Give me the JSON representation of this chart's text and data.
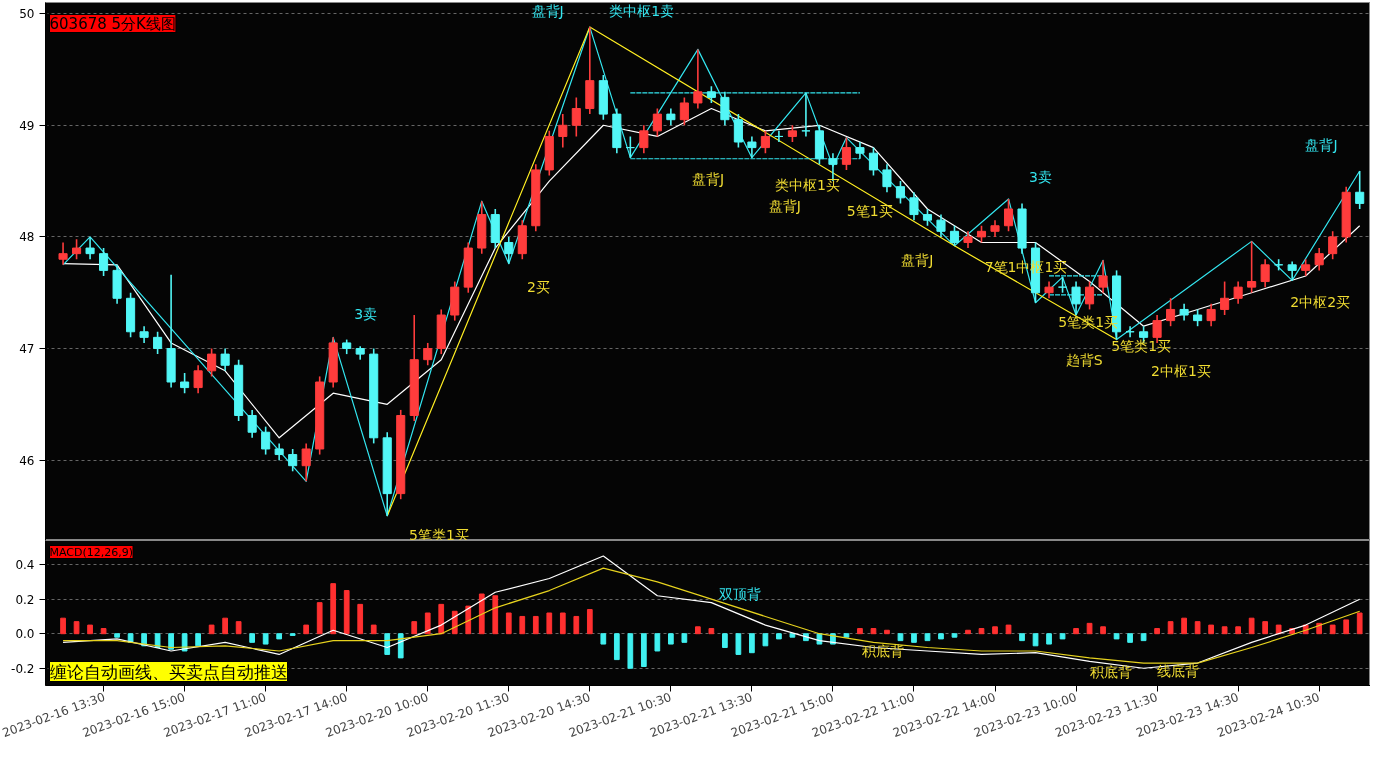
{
  "chart_data": [
    {
      "type": "candlestick",
      "title": "603678 5分K线图",
      "tick_labels": "y",
      "grid": "y",
      "ylim": [
        45.28,
        50.1
      ],
      "yticks": [
        46,
        47,
        48,
        49,
        50
      ],
      "categories": [
        null,
        null,
        null,
        "2023-02-16 13:30",
        null,
        null,
        null,
        null,
        null,
        "2023-02-16 15:00",
        null,
        null,
        null,
        null,
        null,
        "2023-02-17 11:00",
        null,
        null,
        null,
        null,
        null,
        "2023-02-17 14:00",
        null,
        null,
        null,
        null,
        null,
        "2023-02-20 10:00",
        null,
        null,
        null,
        null,
        null,
        "2023-02-20 11:30",
        null,
        null,
        null,
        null,
        null,
        "2023-02-20 14:30",
        null,
        null,
        null,
        null,
        null,
        "2023-02-21 10:30",
        null,
        null,
        null,
        null,
        null,
        "2023-02-21 13:30",
        null,
        null,
        null,
        null,
        null,
        "2023-02-21 15:00",
        null,
        null,
        null,
        null,
        null,
        "2023-02-22 11:00",
        null,
        null,
        null,
        null,
        null,
        "2023-02-22 14:00",
        null,
        null,
        null,
        null,
        null,
        "2023-02-23 10:00",
        null,
        null,
        null,
        null,
        null,
        "2023-02-23 11:30",
        null,
        null,
        null,
        null,
        null,
        "2023-02-23 14:30",
        null,
        null,
        null,
        null,
        null,
        "2023-02-24 10:30",
        null,
        null,
        null
      ],
      "annotations": [
        "3卖",
        "盘背J",
        "类中枢1卖",
        "3卖",
        "盘背J",
        "5笔类1买",
        "2买",
        "盘背J",
        "盘背J",
        "类中枢1买",
        "5笔1买",
        "盘背J",
        "7笔1中枢1买",
        "趋背S",
        "5笔类1买",
        "5笔类1买",
        "2中枢1买",
        "2中枢2买"
      ],
      "ohlc": [
        [
          47.8,
          47.95,
          47.75,
          47.85
        ],
        [
          47.85,
          47.98,
          47.8,
          47.9
        ],
        [
          47.9,
          48.0,
          47.8,
          47.85
        ],
        [
          47.85,
          47.9,
          47.65,
          47.7
        ],
        [
          47.7,
          47.75,
          47.4,
          47.45
        ],
        [
          47.45,
          47.5,
          47.1,
          47.15
        ],
        [
          47.15,
          47.2,
          47.05,
          47.1
        ],
        [
          47.1,
          47.15,
          46.95,
          47.0
        ],
        [
          47.0,
          47.66,
          46.65,
          46.7
        ],
        [
          46.7,
          46.78,
          46.6,
          46.65
        ],
        [
          46.65,
          46.85,
          46.6,
          46.8
        ],
        [
          46.8,
          47.0,
          46.75,
          46.95
        ],
        [
          46.95,
          47.0,
          46.8,
          46.85
        ],
        [
          46.85,
          46.9,
          46.35,
          46.4
        ],
        [
          46.4,
          46.45,
          46.2,
          46.25
        ],
        [
          46.25,
          46.3,
          46.05,
          46.1
        ],
        [
          46.1,
          46.15,
          46.0,
          46.05
        ],
        [
          46.05,
          46.1,
          45.9,
          45.95
        ],
        [
          45.95,
          46.15,
          45.81,
          46.1
        ],
        [
          46.1,
          46.75,
          46.05,
          46.7
        ],
        [
          46.7,
          47.1,
          46.65,
          47.05
        ],
        [
          47.05,
          47.08,
          46.95,
          47.0
        ],
        [
          47.0,
          47.02,
          46.9,
          46.95
        ],
        [
          46.95,
          47.0,
          46.15,
          46.2
        ],
        [
          46.2,
          46.25,
          45.5,
          45.7
        ],
        [
          45.7,
          46.45,
          45.65,
          46.4
        ],
        [
          46.4,
          47.3,
          46.35,
          46.9
        ],
        [
          46.9,
          47.05,
          46.85,
          47.0
        ],
        [
          47.0,
          47.35,
          46.95,
          47.3
        ],
        [
          47.3,
          47.6,
          47.25,
          47.55
        ],
        [
          47.55,
          47.95,
          47.5,
          47.9
        ],
        [
          47.9,
          48.32,
          47.85,
          48.2
        ],
        [
          48.2,
          48.25,
          47.9,
          47.95
        ],
        [
          47.95,
          48.0,
          47.76,
          47.85
        ],
        [
          47.85,
          48.15,
          47.8,
          48.1
        ],
        [
          48.1,
          48.65,
          48.05,
          48.6
        ],
        [
          48.6,
          48.95,
          48.55,
          48.9
        ],
        [
          48.9,
          49.1,
          48.8,
          49.0
        ],
        [
          49.0,
          49.25,
          48.9,
          49.15
        ],
        [
          49.15,
          49.88,
          49.1,
          49.4
        ],
        [
          49.4,
          49.45,
          49.05,
          49.1
        ],
        [
          49.1,
          49.15,
          48.75,
          48.8
        ],
        [
          48.8,
          48.9,
          48.71,
          48.8
        ],
        [
          48.8,
          49.0,
          48.75,
          48.95
        ],
        [
          48.95,
          49.15,
          48.9,
          49.1
        ],
        [
          49.1,
          49.15,
          49.0,
          49.05
        ],
        [
          49.05,
          49.25,
          49.0,
          49.2
        ],
        [
          49.2,
          49.68,
          49.15,
          49.3
        ],
        [
          49.3,
          49.35,
          49.2,
          49.25
        ],
        [
          49.25,
          49.3,
          49.0,
          49.05
        ],
        [
          49.05,
          49.1,
          48.8,
          48.85
        ],
        [
          48.85,
          48.9,
          48.71,
          48.8
        ],
        [
          48.8,
          48.95,
          48.75,
          48.9
        ],
        [
          48.9,
          48.95,
          48.85,
          48.9
        ],
        [
          48.9,
          49.0,
          48.85,
          48.95
        ],
        [
          48.95,
          49.29,
          48.9,
          48.95
        ],
        [
          48.95,
          49.0,
          48.65,
          48.7
        ],
        [
          48.7,
          48.75,
          48.5,
          48.65
        ],
        [
          48.65,
          48.89,
          48.6,
          48.8
        ],
        [
          48.8,
          48.85,
          48.7,
          48.75
        ],
        [
          48.75,
          48.8,
          48.55,
          48.6
        ],
        [
          48.6,
          48.65,
          48.4,
          48.45
        ],
        [
          48.45,
          48.5,
          48.3,
          48.35
        ],
        [
          48.35,
          48.4,
          48.15,
          48.2
        ],
        [
          48.2,
          48.25,
          48.1,
          48.15
        ],
        [
          48.15,
          48.2,
          48.0,
          48.05
        ],
        [
          48.05,
          48.1,
          47.92,
          47.95
        ],
        [
          47.95,
          48.05,
          47.9,
          48.0
        ],
        [
          48.0,
          48.1,
          47.95,
          48.05
        ],
        [
          48.05,
          48.15,
          48.0,
          48.1
        ],
        [
          48.1,
          48.34,
          48.05,
          48.25
        ],
        [
          48.25,
          48.3,
          47.85,
          47.9
        ],
        [
          47.9,
          47.95,
          47.41,
          47.5
        ],
        [
          47.5,
          47.6,
          47.45,
          47.55
        ],
        [
          47.55,
          47.64,
          47.5,
          47.55
        ],
        [
          47.55,
          47.6,
          47.3,
          47.4
        ],
        [
          47.4,
          47.6,
          47.35,
          47.55
        ],
        [
          47.55,
          47.79,
          47.5,
          47.65
        ],
        [
          47.65,
          47.7,
          47.08,
          47.15
        ],
        [
          47.15,
          47.2,
          47.1,
          47.15
        ],
        [
          47.15,
          47.2,
          47.05,
          47.1
        ],
        [
          47.1,
          47.3,
          47.05,
          47.25
        ],
        [
          47.25,
          47.45,
          47.2,
          47.35
        ],
        [
          47.35,
          47.4,
          47.25,
          47.3
        ],
        [
          47.3,
          47.35,
          47.2,
          47.25
        ],
        [
          47.25,
          47.4,
          47.2,
          47.35
        ],
        [
          47.35,
          47.6,
          47.3,
          47.45
        ],
        [
          47.45,
          47.6,
          47.4,
          47.55
        ],
        [
          47.55,
          47.96,
          47.5,
          47.6
        ],
        [
          47.6,
          47.8,
          47.55,
          47.75
        ],
        [
          47.75,
          47.8,
          47.7,
          47.75
        ],
        [
          47.75,
          47.78,
          47.61,
          47.7
        ],
        [
          47.7,
          47.8,
          47.65,
          47.75
        ],
        [
          47.75,
          47.9,
          47.7,
          47.85
        ],
        [
          47.85,
          48.05,
          47.8,
          48.0
        ],
        [
          48.0,
          48.45,
          47.95,
          48.4
        ],
        [
          48.4,
          48.59,
          48.25,
          48.3
        ]
      ],
      "colors": [
        "#ff3c3c",
        "#ff3c3c",
        "#52f6f6",
        "#52f6f6",
        "#52f6f6",
        "#52f6f6",
        "#52f6f6",
        "#52f6f6",
        "#52f6f6",
        "#52f6f6",
        "#ff3c3c",
        "#ff3c3c",
        "#52f6f6",
        "#52f6f6",
        "#52f6f6",
        "#52f6f6",
        "#52f6f6",
        "#52f6f6",
        "#ff3c3c",
        "#ff3c3c",
        "#ff3c3c",
        "#52f6f6",
        "#52f6f6",
        "#52f6f6",
        "#52f6f6",
        "#ff3c3c",
        "#ff3c3c",
        "#ff3c3c",
        "#ff3c3c",
        "#ff3c3c",
        "#ff3c3c",
        "#ff3c3c",
        "#52f6f6",
        "#52f6f6",
        "#ff3c3c",
        "#ff3c3c",
        "#ff3c3c",
        "#ff3c3c",
        "#ff3c3c",
        "#ff3c3c",
        "#52f6f6",
        "#52f6f6",
        "#52f6f6",
        "#ff3c3c",
        "#ff3c3c",
        "#52f6f6",
        "#ff3c3c",
        "#ff3c3c",
        "#52f6f6",
        "#52f6f6",
        "#52f6f6",
        "#52f6f6",
        "#ff3c3c",
        "#52f6f6",
        "#ff3c3c",
        "#52f6f6",
        "#52f6f6",
        "#52f6f6",
        "#ff3c3c",
        "#52f6f6",
        "#52f6f6",
        "#52f6f6",
        "#52f6f6",
        "#52f6f6",
        "#52f6f6",
        "#52f6f6",
        "#52f6f6",
        "#ff3c3c",
        "#ff3c3c",
        "#ff3c3c",
        "#ff3c3c",
        "#52f6f6",
        "#52f6f6",
        "#ff3c3c",
        "#52f6f6",
        "#52f6f6",
        "#ff3c3c",
        "#ff3c3c",
        "#52f6f6",
        "#52f6f6",
        "#52f6f6",
        "#ff3c3c",
        "#ff3c3c",
        "#52f6f6",
        "#52f6f6",
        "#ff3c3c",
        "#ff3c3c",
        "#ff3c3c",
        "#ff3c3c",
        "#ff3c3c",
        "#52f6f6",
        "#52f6f6",
        "#ff3c3c",
        "#ff3c3c",
        "#ff3c3c",
        "#ff3c3c",
        "#52f6f6"
      ],
      "series": [
        {
          "type": "line",
          "color": "#ffffff",
          "values": [
            47.76,
            null,
            null,
            null,
            47.75,
            null,
            null,
            null,
            47.05,
            null,
            null,
            null,
            46.8,
            null,
            null,
            null,
            46.2,
            null,
            null,
            null,
            46.6,
            null,
            null,
            null,
            46.5,
            null,
            null,
            null,
            46.9,
            null,
            null,
            null,
            47.9,
            null,
            null,
            null,
            48.5,
            null,
            null,
            null,
            49.0,
            null,
            null,
            null,
            48.9,
            null,
            null,
            null,
            49.15,
            null,
            null,
            null,
            48.95,
            null,
            null,
            null,
            49.0,
            null,
            null,
            null,
            48.8,
            null,
            null,
            null,
            48.25,
            null,
            null,
            null,
            47.95,
            null,
            null,
            null,
            47.95,
            null,
            null,
            null,
            47.6,
            null,
            null,
            null,
            47.2,
            null,
            null,
            null,
            47.35,
            null,
            null,
            null,
            47.5,
            null,
            null,
            null,
            47.65,
            null,
            null,
            null,
            48.1
          ]
        },
        {
          "type": "line",
          "color": "#33e6f0",
          "values": [
            47.75,
            null,
            48.0,
            null,
            null,
            null,
            null,
            null,
            null,
            null,
            null,
            null,
            null,
            null,
            null,
            null,
            null,
            null,
            45.81,
            null,
            47.1,
            null,
            null,
            null,
            45.5,
            null,
            null,
            null,
            null,
            null,
            null,
            48.32,
            null,
            47.76,
            null,
            null,
            null,
            null,
            null,
            49.88,
            null,
            null,
            48.71,
            null,
            null,
            null,
            null,
            49.68,
            null,
            null,
            null,
            48.71,
            null,
            null,
            null,
            49.29,
            null,
            48.63,
            48.89,
            null,
            null,
            null,
            null,
            null,
            null,
            null,
            47.92,
            null,
            null,
            null,
            48.34,
            null,
            47.41,
            null,
            47.64,
            47.3,
            null,
            47.79,
            47.08,
            null,
            null,
            null,
            null,
            null,
            null,
            null,
            null,
            null,
            47.96,
            null,
            null,
            47.61,
            null,
            null,
            null,
            null,
            48.59
          ]
        },
        {
          "type": "line",
          "color": "#ffee22",
          "values": [
            null,
            null,
            null,
            null,
            null,
            null,
            null,
            null,
            null,
            null,
            null,
            null,
            null,
            null,
            null,
            null,
            null,
            null,
            null,
            null,
            null,
            null,
            null,
            null,
            45.5,
            null,
            null,
            null,
            null,
            null,
            null,
            null,
            null,
            null,
            null,
            null,
            null,
            null,
            null,
            49.88,
            null,
            null,
            null,
            null,
            null,
            null,
            null,
            null,
            null,
            null,
            null,
            null,
            null,
            null,
            null,
            null,
            null,
            null,
            null,
            null,
            null,
            null,
            null,
            null,
            null,
            null,
            47.92,
            null,
            null,
            null,
            null,
            null,
            null,
            null,
            null,
            null,
            null,
            null,
            47.08,
            null,
            null,
            null,
            null,
            null,
            null,
            null,
            null,
            null,
            null,
            null,
            null,
            null,
            null,
            null,
            null,
            null,
            null
          ]
        },
        {
          "type": "line",
          "color": "#33e6f0",
          "line_style": "dashed",
          "values": [
            null,
            null,
            null,
            null,
            null,
            null,
            null,
            null,
            null,
            null,
            null,
            null,
            null,
            null,
            null,
            null,
            null,
            null,
            null,
            null,
            null,
            null,
            null,
            null,
            null,
            null,
            null,
            null,
            null,
            null,
            null,
            null,
            null,
            null,
            null,
            null,
            null,
            null,
            null,
            null,
            null,
            null,
            49.29,
            49.29,
            49.29,
            49.29,
            49.29,
            49.29,
            49.29,
            49.29,
            49.29,
            49.29,
            49.29,
            49.29,
            49.29,
            49.29,
            49.29,
            49.29,
            49.29,
            49.29,
            null,
            null,
            null,
            null,
            null,
            null,
            null,
            null,
            null,
            null,
            null,
            null,
            null,
            null,
            null,
            null,
            null,
            null,
            null,
            null,
            null,
            null,
            null,
            null,
            null,
            null,
            null,
            null,
            null,
            null,
            null,
            null,
            null,
            null,
            null,
            null,
            null
          ]
        },
        {
          "type": "line",
          "color": "#33e6f0",
          "line_style": "dashed",
          "values": [
            null,
            null,
            null,
            null,
            null,
            null,
            null,
            null,
            null,
            null,
            null,
            null,
            null,
            null,
            null,
            null,
            null,
            null,
            null,
            null,
            null,
            null,
            null,
            null,
            null,
            null,
            null,
            null,
            null,
            null,
            null,
            null,
            null,
            null,
            null,
            null,
            null,
            null,
            null,
            null,
            null,
            null,
            48.7,
            48.7,
            48.7,
            48.7,
            48.7,
            48.7,
            48.7,
            48.7,
            48.7,
            48.7,
            48.7,
            48.7,
            48.7,
            48.7,
            48.7,
            48.7,
            48.7,
            48.7,
            null,
            null,
            null,
            null,
            null,
            null,
            null,
            null,
            null,
            null,
            null,
            null,
            null,
            null,
            null,
            null,
            null,
            null,
            null,
            null,
            null,
            null,
            null,
            null,
            null,
            null,
            null,
            null,
            null,
            null,
            null,
            null,
            null,
            null,
            null,
            null,
            null
          ]
        },
        {
          "type": "line",
          "color": "#33e6f0",
          "line_style": "dashed",
          "values": [
            null,
            null,
            null,
            null,
            null,
            null,
            null,
            null,
            null,
            null,
            null,
            null,
            null,
            null,
            null,
            null,
            null,
            null,
            null,
            null,
            null,
            null,
            null,
            null,
            null,
            null,
            null,
            null,
            null,
            null,
            null,
            null,
            null,
            null,
            null,
            null,
            null,
            null,
            null,
            null,
            null,
            null,
            null,
            null,
            null,
            null,
            null,
            null,
            null,
            null,
            null,
            null,
            null,
            null,
            null,
            null,
            null,
            null,
            null,
            null,
            null,
            null,
            null,
            null,
            null,
            null,
            null,
            null,
            null,
            null,
            null,
            null,
            null,
            47.65,
            47.65,
            47.65,
            47.65,
            47.65,
            null,
            null,
            null,
            null,
            null,
            null,
            null,
            null,
            null,
            null,
            null,
            null,
            null,
            null,
            null,
            null,
            null,
            null,
            null
          ]
        },
        {
          "type": "line",
          "color": "#33e6f0",
          "line_style": "dashed",
          "values": [
            null,
            null,
            null,
            null,
            null,
            null,
            null,
            null,
            null,
            null,
            null,
            null,
            null,
            null,
            null,
            null,
            null,
            null,
            null,
            null,
            null,
            null,
            null,
            null,
            null,
            null,
            null,
            null,
            null,
            null,
            null,
            null,
            null,
            null,
            null,
            null,
            null,
            null,
            null,
            null,
            null,
            null,
            null,
            null,
            null,
            null,
            null,
            null,
            null,
            null,
            null,
            null,
            null,
            null,
            null,
            null,
            null,
            null,
            null,
            null,
            null,
            null,
            null,
            null,
            null,
            null,
            null,
            null,
            null,
            null,
            null,
            null,
            null,
            47.48,
            47.48,
            47.48,
            47.48,
            47.48,
            null,
            null,
            null,
            null,
            null,
            null,
            null,
            null,
            null,
            null,
            null,
            null,
            null,
            null,
            null,
            null,
            null,
            null,
            null
          ]
        }
      ]
    },
    {
      "type": "bar",
      "title": "MACD(12,26,9)",
      "grid": "y",
      "ylim": [
        -0.3,
        0.54
      ],
      "yticks": [
        -0.2,
        {
          "value": 0,
          "label": "0.0"
        },
        0.2,
        0.4
      ],
      "annotations": [
        "缠论自动画线、买卖点自动推送",
        "双顶背",
        "积底背",
        "积底背",
        "线底背"
      ],
      "categories": [
        null,
        null,
        null,
        "2023-02-16 13:30",
        null,
        null,
        null,
        null,
        null,
        "2023-02-16 15:00",
        null,
        null,
        null,
        null,
        null,
        "2023-02-17 11:00",
        null,
        null,
        null,
        null,
        null,
        "2023-02-17 14:00",
        null,
        null,
        null,
        null,
        null,
        "2023-02-20 10:00",
        null,
        null,
        null,
        null,
        null,
        "2023-02-20 11:30",
        null,
        null,
        null,
        null,
        null,
        "2023-02-20 14:30",
        null,
        null,
        null,
        null,
        null,
        "2023-02-21 10:30",
        null,
        null,
        null,
        null,
        null,
        "2023-02-21 13:30",
        null,
        null,
        null,
        null,
        null,
        "2023-02-21 15:00",
        null,
        null,
        null,
        null,
        null,
        "2023-02-22 11:00",
        null,
        null,
        null,
        null,
        null,
        "2023-02-22 14:00",
        null,
        null,
        null,
        null,
        null,
        "2023-02-23 10:00",
        null,
        null,
        null,
        null,
        null,
        "2023-02-23 11:30",
        null,
        null,
        null,
        null,
        null,
        "2023-02-23 14:30",
        null,
        null,
        null,
        null,
        null,
        "2023-02-24 10:30",
        null,
        null,
        null
      ],
      "values": [
        0.09,
        0.07,
        0.05,
        0.03,
        -0.02,
        -0.05,
        -0.07,
        -0.08,
        -0.09,
        -0.1,
        -0.07,
        0.05,
        0.09,
        0.07,
        -0.05,
        -0.06,
        -0.03,
        -0.01,
        0.05,
        0.18,
        0.29,
        0.25,
        0.17,
        0.05,
        -0.12,
        -0.14,
        0.07,
        0.12,
        0.17,
        0.13,
        0.16,
        0.23,
        0.22,
        0.12,
        0.1,
        0.1,
        0.12,
        0.12,
        0.1,
        0.14,
        -0.06,
        -0.15,
        -0.2,
        -0.19,
        -0.1,
        -0.06,
        -0.05,
        0.04,
        0.03,
        -0.08,
        -0.12,
        -0.11,
        -0.07,
        -0.03,
        -0.02,
        -0.04,
        -0.06,
        -0.06,
        -0.02,
        0.03,
        0.03,
        0.02,
        -0.04,
        -0.05,
        -0.04,
        -0.03,
        -0.02,
        0.02,
        0.03,
        0.04,
        0.05,
        -0.04,
        -0.07,
        -0.06,
        -0.03,
        0.03,
        0.06,
        0.04,
        -0.03,
        -0.05,
        -0.04,
        0.03,
        0.07,
        0.09,
        0.07,
        0.05,
        0.04,
        0.04,
        0.09,
        0.07,
        0.05,
        0.03,
        0.05,
        0.06,
        0.05,
        0.08,
        0.12
      ],
      "colors": [
        "#ff3030",
        "#ff3030",
        "#ff3030",
        "#ff3030",
        "#40f0f0",
        "#40f0f0",
        "#40f0f0",
        "#40f0f0",
        "#40f0f0",
        "#40f0f0",
        "#40f0f0",
        "#ff3030",
        "#ff3030",
        "#ff3030",
        "#40f0f0",
        "#40f0f0",
        "#40f0f0",
        "#40f0f0",
        "#ff3030",
        "#ff3030",
        "#ff3030",
        "#ff3030",
        "#ff3030",
        "#ff3030",
        "#40f0f0",
        "#40f0f0",
        "#ff3030",
        "#ff3030",
        "#ff3030",
        "#ff3030",
        "#ff3030",
        "#ff3030",
        "#ff3030",
        "#ff3030",
        "#ff3030",
        "#ff3030",
        "#ff3030",
        "#ff3030",
        "#ff3030",
        "#ff3030",
        "#40f0f0",
        "#40f0f0",
        "#40f0f0",
        "#40f0f0",
        "#40f0f0",
        "#40f0f0",
        "#40f0f0",
        "#ff3030",
        "#ff3030",
        "#40f0f0",
        "#40f0f0",
        "#40f0f0",
        "#40f0f0",
        "#40f0f0",
        "#40f0f0",
        "#40f0f0",
        "#40f0f0",
        "#40f0f0",
        "#40f0f0",
        "#ff3030",
        "#ff3030",
        "#ff3030",
        "#40f0f0",
        "#40f0f0",
        "#40f0f0",
        "#40f0f0",
        "#40f0f0",
        "#ff3030",
        "#ff3030",
        "#ff3030",
        "#ff3030",
        "#40f0f0",
        "#40f0f0",
        "#40f0f0",
        "#40f0f0",
        "#ff3030",
        "#ff3030",
        "#ff3030",
        "#40f0f0",
        "#40f0f0",
        "#40f0f0",
        "#ff3030",
        "#ff3030",
        "#ff3030",
        "#ff3030",
        "#ff3030",
        "#ff3030",
        "#ff3030",
        "#ff3030",
        "#ff3030",
        "#ff3030",
        "#ff3030",
        "#ff3030",
        "#ff3030",
        "#ff3030",
        "#ff3030",
        "#ff3030"
      ],
      "series": [
        {
          "type": "line",
          "color": "#ffffff",
          "values": [
            -0.05,
            null,
            null,
            null,
            -0.03,
            null,
            null,
            null,
            -0.1,
            null,
            null,
            null,
            -0.05,
            null,
            null,
            null,
            -0.12,
            null,
            null,
            null,
            0.02,
            null,
            null,
            null,
            -0.08,
            null,
            null,
            null,
            0.05,
            null,
            null,
            null,
            0.24,
            null,
            null,
            null,
            0.32,
            null,
            null,
            null,
            0.45,
            null,
            null,
            null,
            0.22,
            null,
            null,
            null,
            0.18,
            null,
            null,
            null,
            0.05,
            null,
            null,
            null,
            -0.04,
            null,
            null,
            null,
            -0.08,
            null,
            null,
            null,
            -0.1,
            null,
            null,
            null,
            -0.12,
            null,
            null,
            null,
            -0.11,
            null,
            null,
            null,
            -0.16,
            null,
            null,
            null,
            -0.2,
            null,
            null,
            null,
            -0.17,
            null,
            null,
            null,
            -0.05,
            null,
            null,
            null,
            0.05,
            null,
            null,
            null,
            0.2
          ]
        },
        {
          "type": "line",
          "color": "#e6d21e",
          "values": [
            -0.04,
            null,
            null,
            null,
            -0.04,
            null,
            null,
            null,
            -0.08,
            null,
            null,
            null,
            -0.07,
            null,
            null,
            null,
            -0.1,
            null,
            null,
            null,
            -0.04,
            null,
            null,
            null,
            -0.04,
            null,
            null,
            null,
            0.0,
            null,
            null,
            null,
            0.15,
            null,
            null,
            null,
            0.25,
            null,
            null,
            null,
            0.38,
            null,
            null,
            null,
            0.3,
            null,
            null,
            null,
            0.2,
            null,
            null,
            null,
            0.1,
            null,
            null,
            null,
            0.0,
            null,
            null,
            null,
            -0.05,
            null,
            null,
            null,
            -0.08,
            null,
            null,
            null,
            -0.1,
            null,
            null,
            null,
            -0.1,
            null,
            null,
            null,
            -0.14,
            null,
            null,
            null,
            -0.17,
            null,
            null,
            null,
            -0.17,
            null,
            null,
            null,
            -0.08,
            null,
            null,
            null,
            0.02,
            null,
            null,
            null,
            0.13
          ]
        }
      ]
    }
  ]
}
